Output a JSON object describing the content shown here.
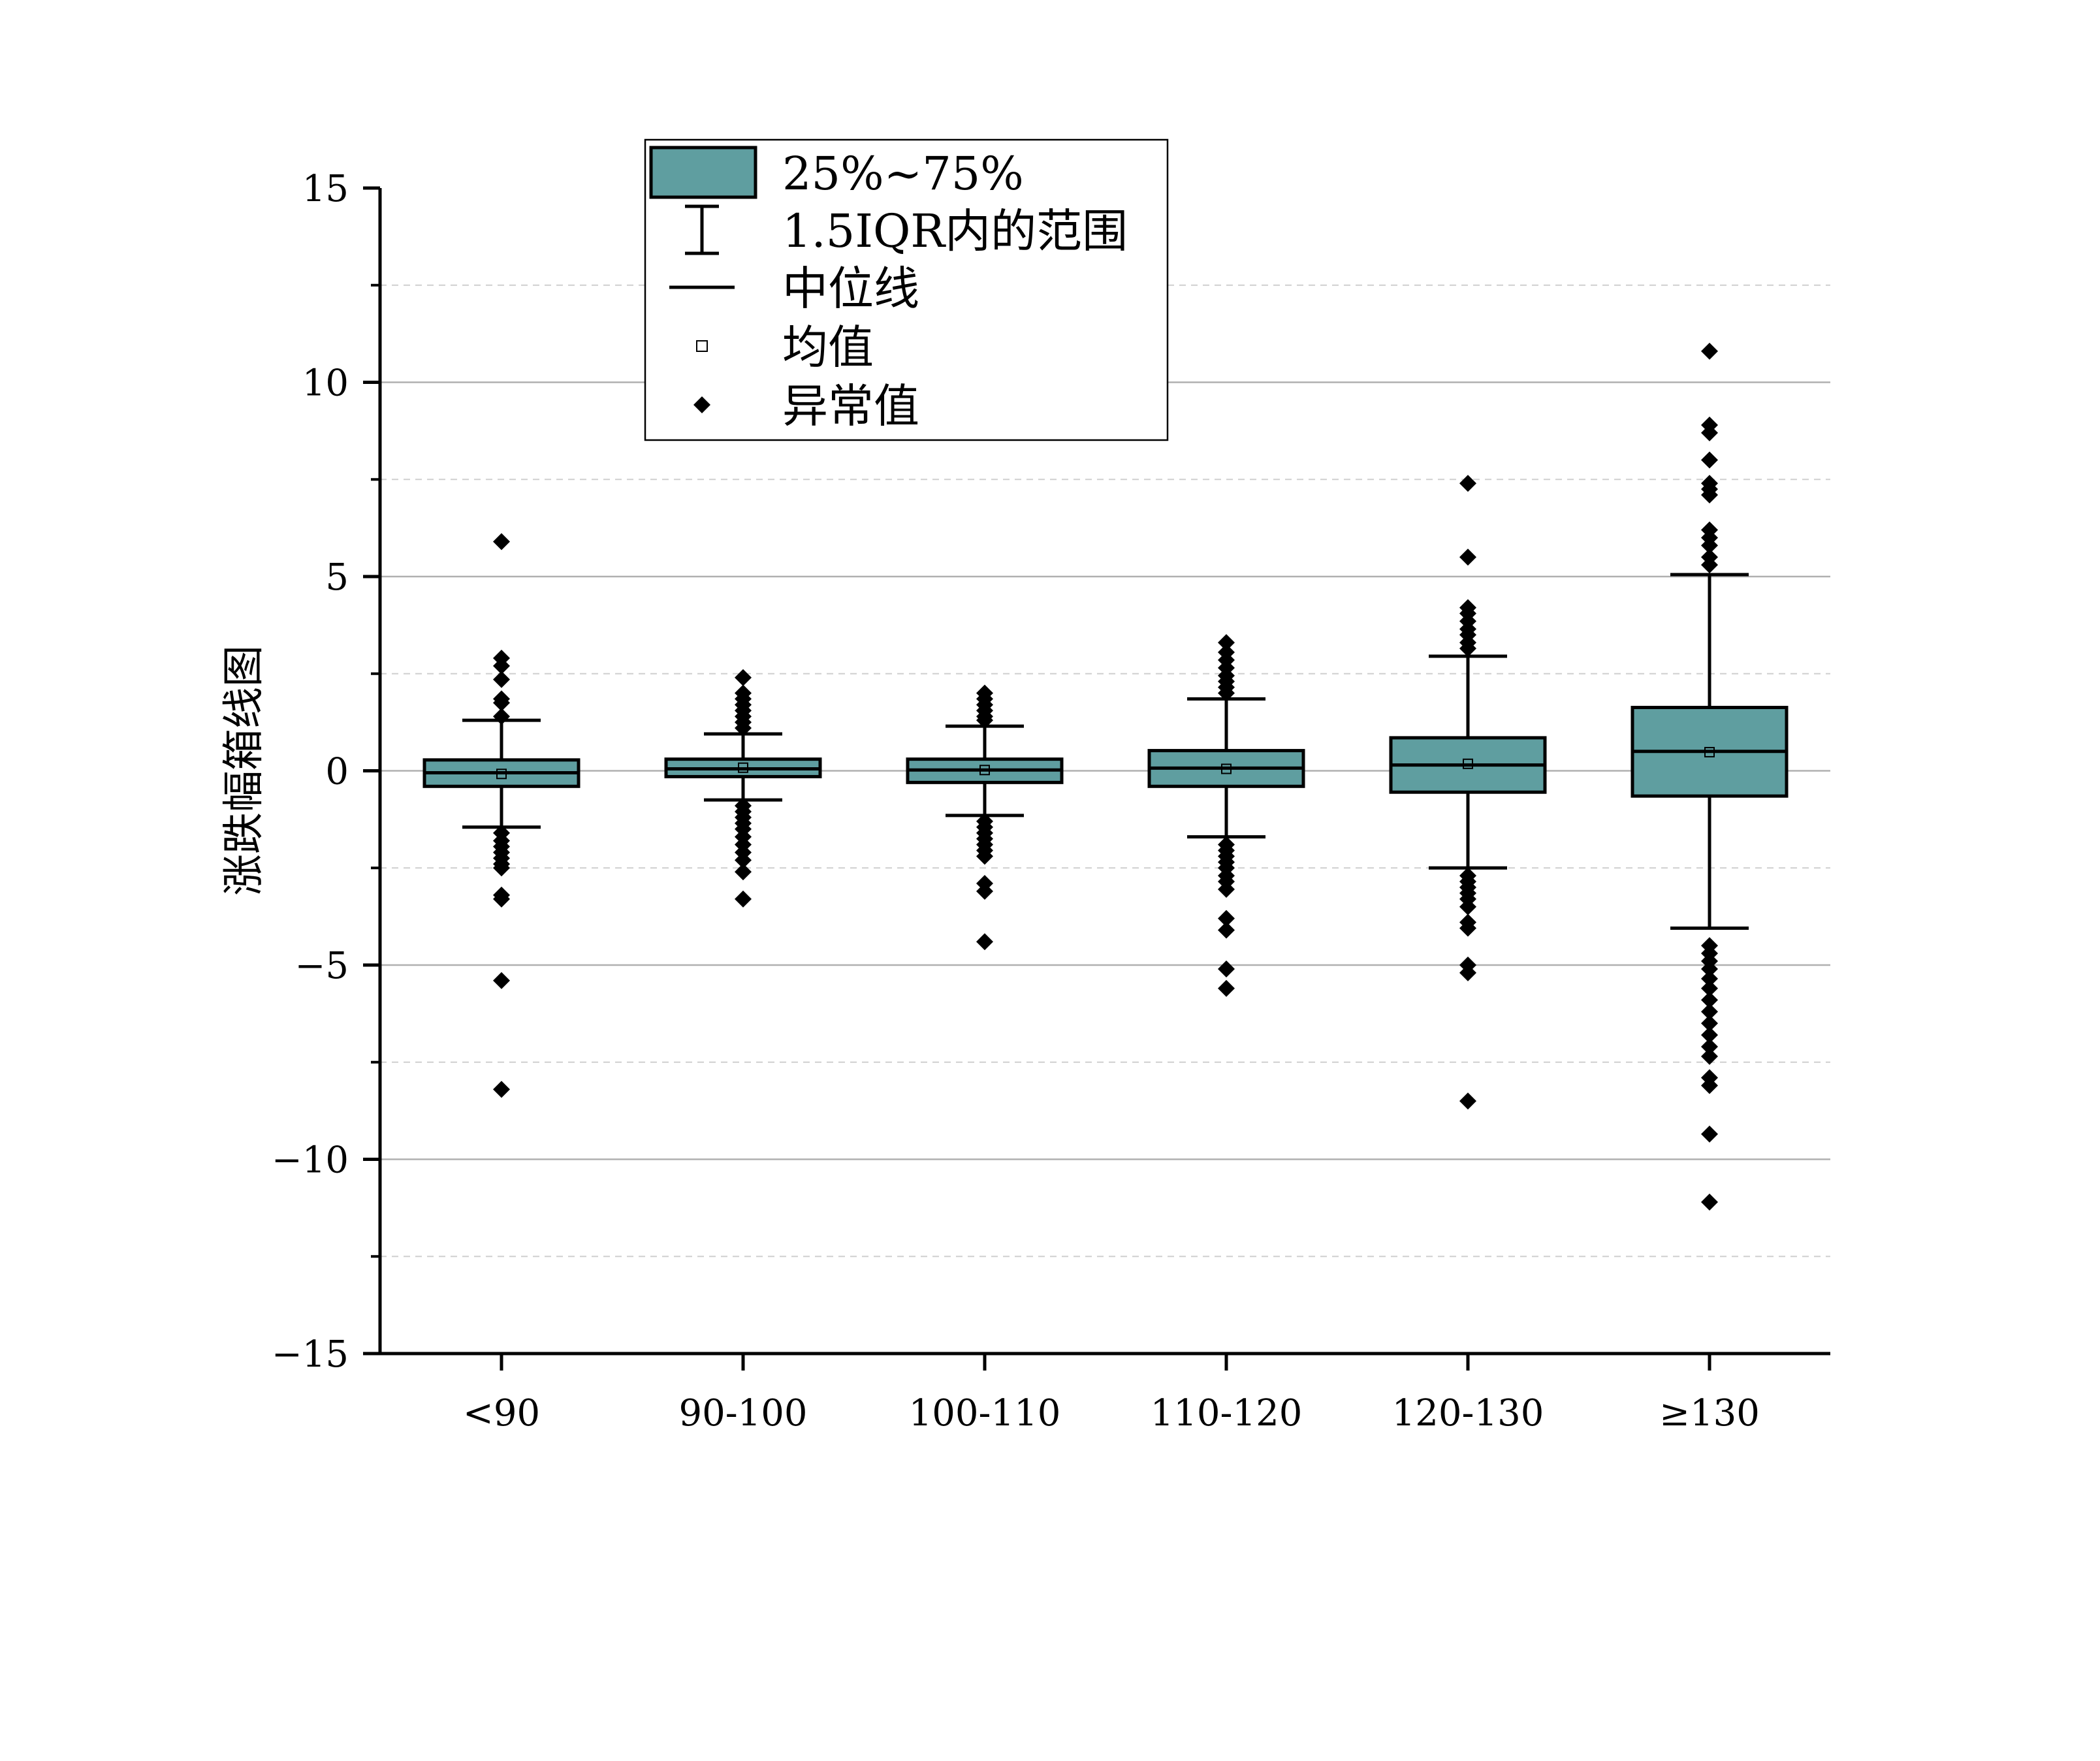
{
  "chart_data": {
    "type": "box",
    "ylabel": "涨跌幅箱线图",
    "xlabel": "",
    "title": "",
    "ylim": [
      -15,
      15
    ],
    "yticks": [
      -15,
      -10,
      -5,
      0,
      5,
      10,
      15
    ],
    "minor_grid": [
      -12.5,
      -7.5,
      -2.5,
      2.5,
      7.5,
      12.5
    ],
    "grid": true,
    "legend_position": "top-center",
    "colors": {
      "box_fill": "#5f9ea0",
      "stroke": "#000000",
      "grid": "#b0b0b0"
    },
    "legend": [
      {
        "symbol": "box",
        "label": "25%~75%"
      },
      {
        "symbol": "whisker",
        "label": "1.5IQR内的范围"
      },
      {
        "symbol": "median-line",
        "label": "中位线"
      },
      {
        "symbol": "mean-square",
        "label": "均值"
      },
      {
        "symbol": "outlier-diamond",
        "label": "异常值"
      }
    ],
    "categories": [
      "<90",
      "90-100",
      "100-110",
      "110-120",
      "120-130",
      "≥130"
    ],
    "boxes": [
      {
        "q1": -0.4,
        "median": -0.05,
        "q3": 0.28,
        "mean": -0.08,
        "whisker_low": -1.45,
        "whisker_high": 1.3,
        "outliers": [
          5.9,
          2.9,
          2.7,
          2.35,
          1.85,
          1.75,
          1.4,
          -1.6,
          -1.8,
          -1.95,
          -2.1,
          -2.25,
          -2.4,
          -2.5,
          -3.2,
          -3.3,
          -5.4,
          -8.2
        ]
      },
      {
        "q1": -0.15,
        "median": 0.05,
        "q3": 0.3,
        "mean": 0.08,
        "whisker_low": -0.75,
        "whisker_high": 0.95,
        "outliers": [
          2.4,
          2.0,
          1.85,
          1.7,
          1.55,
          1.4,
          1.25,
          1.1,
          -0.9,
          -1.05,
          -1.2,
          -1.35,
          -1.5,
          -1.7,
          -1.9,
          -2.1,
          -2.3,
          -2.6,
          -3.3
        ]
      },
      {
        "q1": -0.3,
        "median": 0.02,
        "q3": 0.3,
        "mean": 0.02,
        "whisker_low": -1.15,
        "whisker_high": 1.15,
        "outliers": [
          2.0,
          1.85,
          1.7,
          1.55,
          1.4,
          1.3,
          -1.3,
          -1.45,
          -1.6,
          -1.75,
          -1.9,
          -2.05,
          -2.2,
          -2.9,
          -3.1,
          -4.4
        ]
      },
      {
        "q1": -0.4,
        "median": 0.07,
        "q3": 0.52,
        "mean": 0.05,
        "whisker_low": -1.7,
        "whisker_high": 1.85,
        "outliers": [
          3.3,
          3.05,
          2.85,
          2.65,
          2.45,
          2.3,
          2.15,
          2.0,
          -1.9,
          -2.05,
          -2.2,
          -2.35,
          -2.5,
          -2.7,
          -2.85,
          -3.05,
          -3.8,
          -4.1,
          -5.1,
          -5.6
        ]
      },
      {
        "q1": -0.55,
        "median": 0.15,
        "q3": 0.85,
        "mean": 0.18,
        "whisker_low": -2.5,
        "whisker_high": 2.95,
        "outliers": [
          7.4,
          5.5,
          4.2,
          4.05,
          3.85,
          3.65,
          3.5,
          3.3,
          3.15,
          -2.7,
          -2.85,
          -3.0,
          -3.15,
          -3.3,
          -3.5,
          -3.9,
          -4.05,
          -5.0,
          -5.2,
          -8.5
        ]
      },
      {
        "q1": -0.65,
        "median": 0.5,
        "q3": 1.63,
        "mean": 0.48,
        "whisker_low": -4.05,
        "whisker_high": 5.05,
        "outliers": [
          10.8,
          8.9,
          8.7,
          8.0,
          7.4,
          7.25,
          7.1,
          6.2,
          6.0,
          5.8,
          5.5,
          5.3,
          -4.5,
          -4.7,
          -4.9,
          -5.1,
          -5.35,
          -5.6,
          -5.9,
          -6.2,
          -6.5,
          -6.8,
          -7.1,
          -7.35,
          -7.9,
          -8.1,
          -9.35,
          -11.1
        ]
      }
    ]
  }
}
